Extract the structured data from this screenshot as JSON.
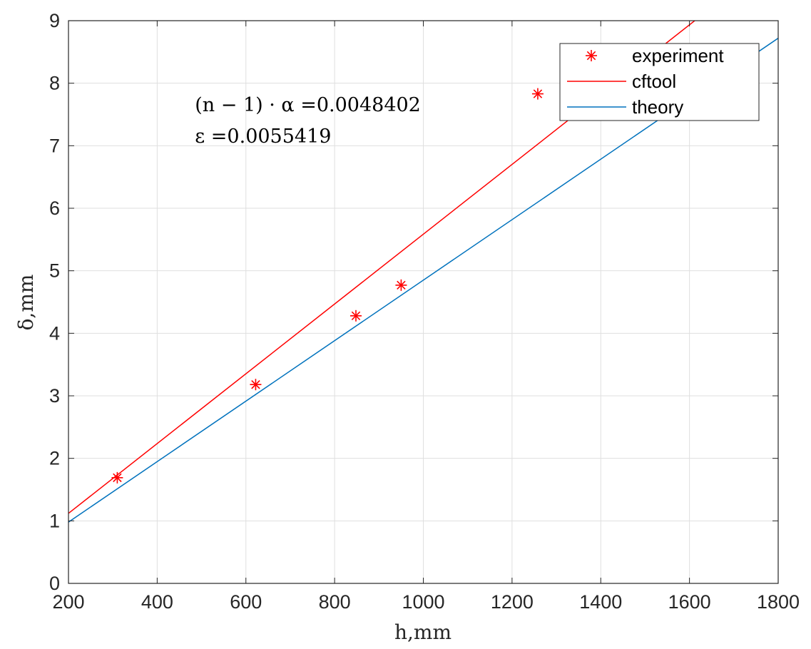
{
  "chart_data": {
    "type": "scatter",
    "xlabel": "h,mm",
    "ylabel": "δ,mm",
    "xlim": [
      200,
      1800
    ],
    "ylim": [
      0,
      9
    ],
    "x_ticks": [
      200,
      400,
      600,
      800,
      1000,
      1200,
      1400,
      1600,
      1800
    ],
    "y_ticks": [
      0,
      1,
      2,
      3,
      4,
      5,
      6,
      7,
      8,
      9
    ],
    "grid": true,
    "legend_position": "top-right",
    "series": [
      {
        "name": "experiment",
        "kind": "markers",
        "marker": "asterisk",
        "color": "#ff0000",
        "x": [
          310,
          622,
          848,
          950,
          1258
        ],
        "y": [
          1.69,
          3.18,
          4.28,
          4.77,
          7.83
        ]
      },
      {
        "name": "cftool",
        "kind": "line",
        "color": "#ff0000",
        "x": [
          200,
          1800
        ],
        "y": [
          1.12,
          10.05
        ]
      },
      {
        "name": "theory",
        "kind": "line",
        "color": "#0072bd",
        "x": [
          200,
          1800
        ],
        "y": [
          0.98,
          8.72
        ]
      }
    ],
    "annotations": [
      {
        "text": "(n − 1) · α =0.0048402",
        "x": 485,
        "y": 7.55
      },
      {
        "text": "ε =0.0055419",
        "x": 485,
        "y": 7.05
      }
    ]
  }
}
